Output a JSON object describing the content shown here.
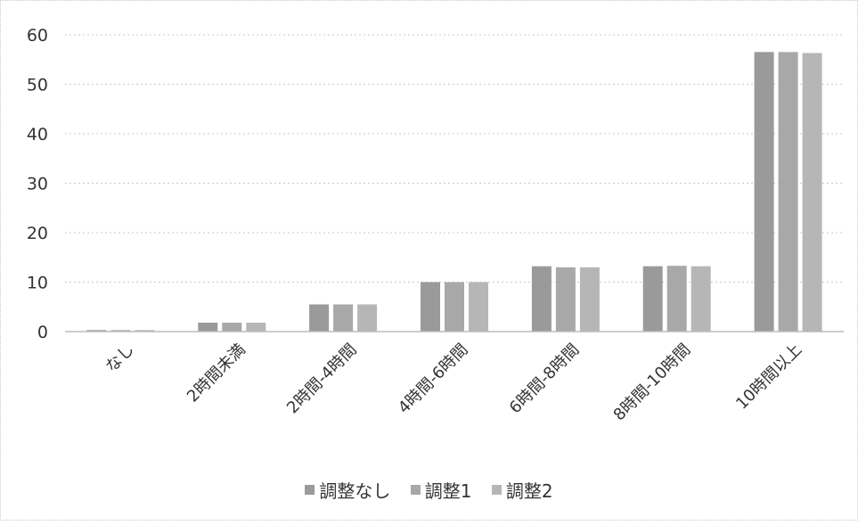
{
  "chart_data": {
    "type": "bar",
    "title": "",
    "xlabel": "",
    "ylabel": "",
    "ylim": [
      0,
      60
    ],
    "yticks": [
      0,
      10,
      20,
      30,
      40,
      50,
      60
    ],
    "grid": true,
    "legend_position": "bottom",
    "categories": [
      "なし",
      "2時間未満",
      "2時間-4時間",
      "4時間-6時間",
      "6時間-8時間",
      "8時間-10時間",
      "10時間以上"
    ],
    "series": [
      {
        "name": "調整なし",
        "color": "#9a9a9a",
        "values": [
          0.3,
          1.8,
          5.5,
          10.0,
          13.2,
          13.2,
          56.5
        ]
      },
      {
        "name": "調整1",
        "color": "#a8a8a8",
        "values": [
          0.3,
          1.8,
          5.5,
          10.0,
          13.0,
          13.3,
          56.5
        ]
      },
      {
        "name": "調整2",
        "color": "#b6b6b6",
        "values": [
          0.3,
          1.8,
          5.5,
          10.0,
          13.0,
          13.2,
          56.3
        ]
      }
    ]
  }
}
